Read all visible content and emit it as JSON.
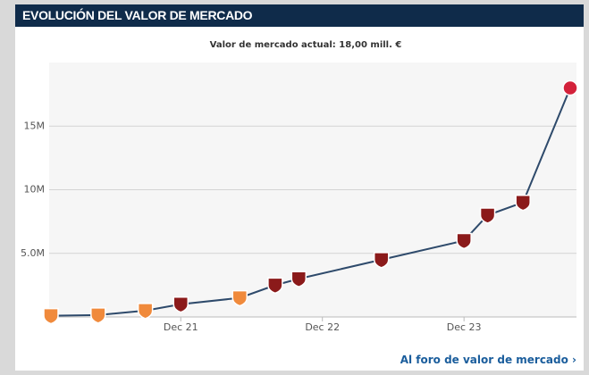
{
  "chart_data": {
    "type": "line",
    "title": "EVOLUCIÓN DEL VALOR DE MERCADO",
    "subtitle": "Valor de mercado actual: 18,00 mill. €",
    "x": [
      "2021-01",
      "2021-05",
      "2021-09",
      "2021-12",
      "2022-05",
      "2022-08",
      "2022-10",
      "2023-05",
      "2023-12",
      "2024-02",
      "2024-05",
      "2024-09"
    ],
    "series": [
      {
        "color": "#2e4a6b",
        "values": [
          0.1,
          0.15,
          0.5,
          1.0,
          1.5,
          2.5,
          3.0,
          4.5,
          6.0,
          8.0,
          9.0,
          18.0
        ]
      }
    ],
    "marker_colors": [
      "#f08a3c",
      "#f08a3c",
      "#f08a3c",
      "#8b1a1a",
      "#f08a3c",
      "#8b1a1a",
      "#8b1a1a",
      "#8b1a1a",
      "#8b1a1a",
      "#8b1a1a",
      "#8b1a1a",
      "#d3213a"
    ],
    "xlim": [
      "2021-01",
      "2024-09"
    ],
    "xticks": [
      {
        "value": "2021-12",
        "label": "Dec 21"
      },
      {
        "value": "2022-12",
        "label": "Dec 22"
      },
      {
        "value": "2023-12",
        "label": "Dec 23"
      }
    ],
    "ylim": [
      0,
      20
    ],
    "yticks": [
      {
        "value": 5,
        "label": "5.0M"
      },
      {
        "value": 10,
        "label": "10M"
      },
      {
        "value": 15,
        "label": "15M"
      }
    ],
    "grid": true
  },
  "footer_link": "Al foro de valor de mercado"
}
